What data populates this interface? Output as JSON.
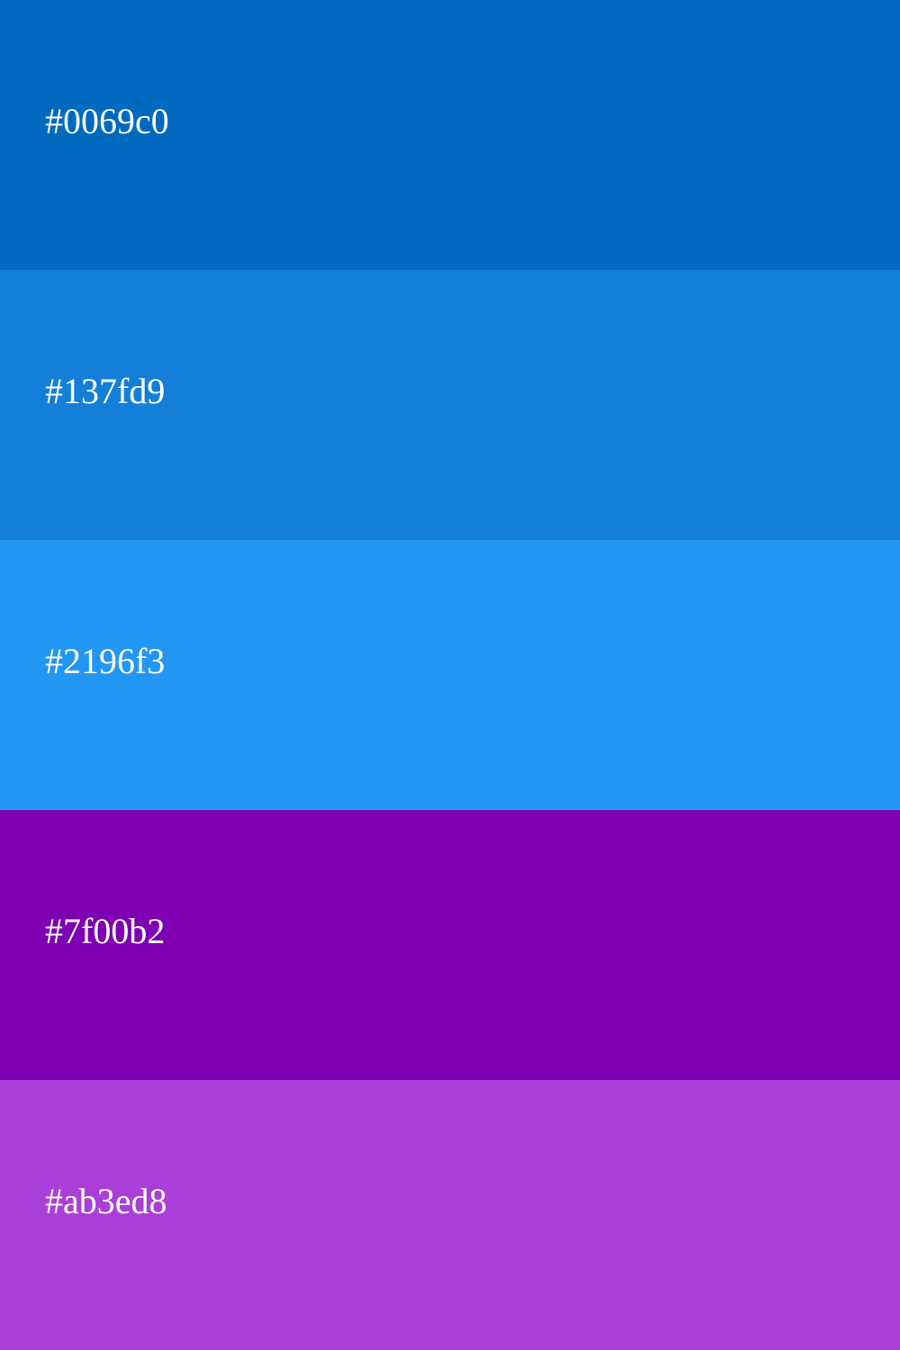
{
  "palette": {
    "swatches": [
      {
        "label": "#0069c0",
        "color": "#0069c0"
      },
      {
        "label": "#137fd9",
        "color": "#137fd9"
      },
      {
        "label": "#2196f3",
        "color": "#2196f3"
      },
      {
        "label": "#7f00b2",
        "color": "#7f00b2"
      },
      {
        "label": "#ab3ed8",
        "color": "#ab3ed8"
      }
    ],
    "text_color": "#ffffff"
  }
}
